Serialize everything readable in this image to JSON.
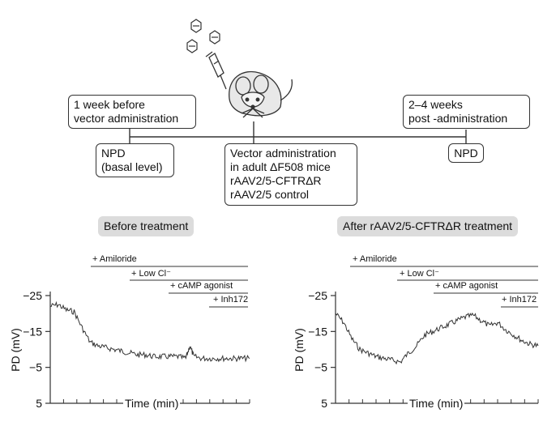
{
  "timeline": {
    "box_before": "1 week before\nvector administration",
    "box_after": "2–4 weeks\npost -administration",
    "box_npd_basal": "NPD\n(basal level)",
    "box_vector": "Vector administration\nin adult ΔF508 mice\nrAAV2/5-CFTRΔR\nrAAV2/5 control",
    "box_npd": "NPD"
  },
  "panels": {
    "before_title": "Before treatment",
    "after_title": "After rAAV2/5-CFTRΔR treatment"
  },
  "treatments": [
    "+ Amiloride",
    "+ Low Cl⁻",
    "+ cAMP agonist",
    "+ Inh172"
  ],
  "axes": {
    "ylabel": "PD (mV)",
    "xlabel": "Time (min)",
    "yticks": [
      "−25",
      "−15",
      "−5",
      "5"
    ]
  },
  "colors": {
    "trace": "#333333",
    "pill_bg": "#dcdcdc",
    "line": "#333333"
  },
  "chart_data": [
    {
      "type": "line",
      "title": "Before treatment",
      "xlabel": "Time (min)",
      "ylabel": "PD (mV)",
      "ylim": [
        5,
        -25
      ],
      "y_ticks": [
        -25,
        -15,
        -5,
        5
      ],
      "x": [
        0,
        4,
        8,
        12,
        16,
        20,
        24,
        28,
        32,
        36,
        40,
        44,
        48,
        52,
        56,
        60,
        64,
        68,
        70,
        72,
        76,
        80,
        84,
        88,
        92,
        96,
        100
      ],
      "values": [
        -22,
        -22.5,
        -21,
        -20.5,
        -16,
        -12,
        -11,
        -10.5,
        -10,
        -9.5,
        -9,
        -8.5,
        -8.5,
        -8,
        -8,
        -8,
        -8,
        -7.5,
        -11,
        -8,
        -7.5,
        -7.5,
        -7.5,
        -7.5,
        -7.5,
        -7.5,
        -7.5
      ]
    },
    {
      "type": "line",
      "title": "After rAAV2/5-CFTRΔR treatment",
      "xlabel": "Time (min)",
      "ylabel": "PD (mV)",
      "ylim": [
        5,
        -25
      ],
      "y_ticks": [
        -25,
        -15,
        -5,
        5
      ],
      "x": [
        0,
        4,
        8,
        12,
        16,
        20,
        24,
        28,
        32,
        36,
        40,
        44,
        48,
        52,
        56,
        60,
        64,
        68,
        72,
        76,
        80,
        84,
        88,
        92,
        96,
        100
      ],
      "values": [
        -20,
        -17.5,
        -13,
        -10,
        -9,
        -8,
        -7.5,
        -7,
        -6.5,
        -9,
        -11,
        -14,
        -15,
        -16,
        -17,
        -18,
        -19,
        -19.5,
        -18,
        -16.5,
        -17.5,
        -15.5,
        -14,
        -12.5,
        -11.5,
        -11
      ]
    }
  ]
}
